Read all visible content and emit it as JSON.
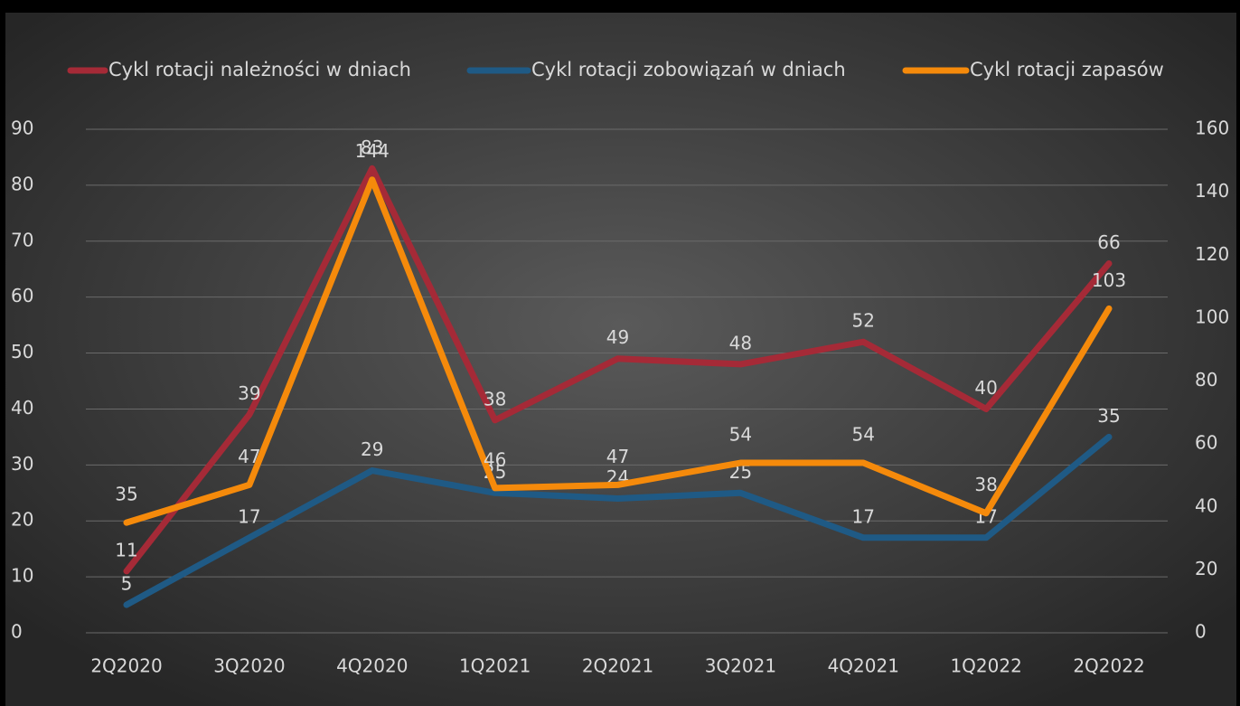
{
  "chart_data": {
    "type": "line",
    "categories": [
      "2Q2020",
      "3Q2020",
      "4Q2020",
      "1Q2021",
      "2Q2021",
      "3Q2021",
      "4Q2021",
      "1Q2022",
      "2Q2022"
    ],
    "series": [
      {
        "name": "Cykl rotacji należności w dniach",
        "color": "#a52a37",
        "values": [
          11,
          39,
          83,
          38,
          49,
          48,
          52,
          40,
          66
        ]
      },
      {
        "name": "Cykl rotacji zobowiązań w dniach",
        "color": "#1f5a85",
        "values": [
          5,
          17,
          29,
          25,
          24,
          25,
          17,
          17,
          35
        ]
      },
      {
        "name": "Cykl rotacji zapasów",
        "color": "#f58a0b",
        "axis": "y2",
        "values": [
          35,
          47,
          144,
          46,
          47,
          54,
          54,
          38,
          103
        ]
      }
    ],
    "ylim": [
      0,
      90
    ],
    "yticks": [
      0,
      10,
      20,
      30,
      40,
      50,
      60,
      70,
      80,
      90
    ],
    "y2lim": [
      0,
      160
    ],
    "y2ticks": [
      0,
      20,
      40,
      60,
      80,
      100,
      120,
      140,
      160
    ],
    "grid": true,
    "legend": "top"
  }
}
